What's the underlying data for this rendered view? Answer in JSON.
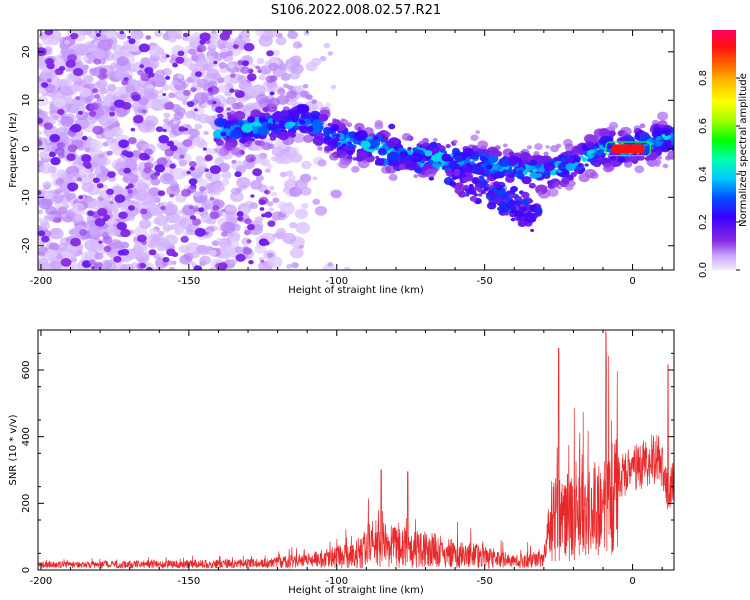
{
  "title": "S106.2022.008.02.57.R21",
  "chart_data": [
    {
      "type": "heatmap",
      "xlabel": "Height of straight line (km)",
      "ylabel": "Frequency (Hz)",
      "xlim": [
        -201,
        14
      ],
      "ylim": [
        -25,
        24.5
      ],
      "x_ticks": [
        -200,
        -150,
        -100,
        -50,
        0
      ],
      "y_ticks": [
        -20,
        -10,
        0,
        10,
        20
      ],
      "colorbar": {
        "label": "Normalized spectral amplitude",
        "range": [
          0,
          1
        ],
        "ticks": [
          0.0,
          0.2,
          0.4,
          0.6,
          0.8
        ]
      },
      "ridge": {
        "description_points": [
          {
            "x": -200,
            "y": 0
          },
          {
            "x": -135,
            "y": 4
          },
          {
            "x": -110,
            "y": 6
          },
          {
            "x": -100,
            "y": 2
          },
          {
            "x": -80,
            "y": -1
          },
          {
            "x": -50,
            "y": -3
          },
          {
            "x": -30,
            "y": -5
          },
          {
            "x": -20,
            "y": -3
          },
          {
            "x": -10,
            "y": 0
          },
          {
            "x": 0,
            "y": 0
          },
          {
            "x": 10,
            "y": 2
          }
        ],
        "lower_branch": [
          {
            "x": -60,
            "y": -6
          },
          {
            "x": -45,
            "y": -10
          },
          {
            "x": -33,
            "y": -14
          }
        ]
      }
    },
    {
      "type": "line",
      "xlabel": "Height of straight line (km)",
      "ylabel": "SNR (10 * v/v)",
      "xlim": [
        -201,
        14
      ],
      "ylim": [
        0,
        720
      ],
      "x_ticks": [
        -200,
        -150,
        -100,
        -50,
        0
      ],
      "y_ticks": [
        0,
        200,
        400,
        600
      ],
      "color": "#e8292b",
      "envelope": [
        {
          "x": -200,
          "y": 20
        },
        {
          "x": -150,
          "y": 25
        },
        {
          "x": -125,
          "y": 30
        },
        {
          "x": -110,
          "y": 45
        },
        {
          "x": -95,
          "y": 80
        },
        {
          "x": -88,
          "y": 150
        },
        {
          "x": -80,
          "y": 130
        },
        {
          "x": -70,
          "y": 110
        },
        {
          "x": -60,
          "y": 90
        },
        {
          "x": -50,
          "y": 70
        },
        {
          "x": -40,
          "y": 40
        },
        {
          "x": -30,
          "y": 60
        },
        {
          "x": -28,
          "y": 200
        },
        {
          "x": -25,
          "y": 280
        },
        {
          "x": -20,
          "y": 260
        },
        {
          "x": -15,
          "y": 280
        },
        {
          "x": -10,
          "y": 320
        },
        {
          "x": -5,
          "y": 370
        },
        {
          "x": 0,
          "y": 400
        },
        {
          "x": 5,
          "y": 430
        },
        {
          "x": 9,
          "y": 460
        },
        {
          "x": 12,
          "y": 300
        },
        {
          "x": 14,
          "y": 380
        }
      ],
      "spikes": [
        {
          "x": -85,
          "y": 300
        },
        {
          "x": -76,
          "y": 295
        },
        {
          "x": -25,
          "y": 665
        },
        {
          "x": -9,
          "y": 715
        },
        {
          "x": 12,
          "y": 615
        }
      ]
    }
  ]
}
